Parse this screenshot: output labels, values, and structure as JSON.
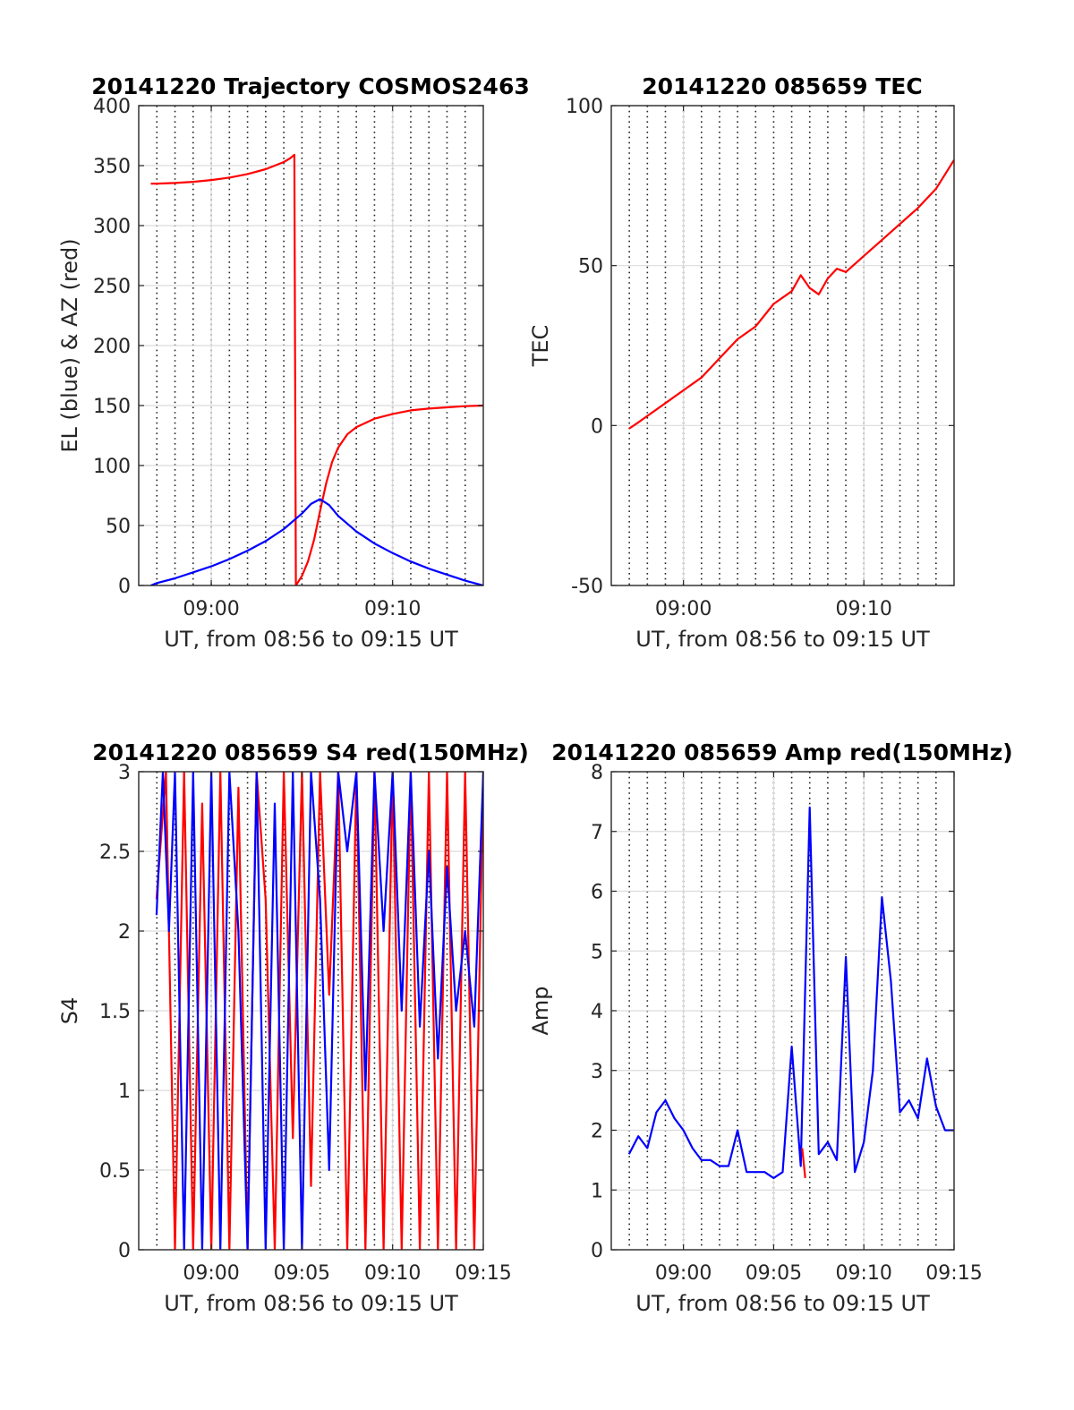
{
  "chart_data": [
    {
      "id": "trajectory",
      "type": "line",
      "title": "20141220 Trajectory COSMOS2463",
      "xlabel": "UT, from 08:56 to 09:15 UT",
      "ylabel": "EL (blue) & AZ (red)",
      "xlim": [
        "08:56",
        "09:15"
      ],
      "ylim": [
        0,
        400
      ],
      "yticks": [
        0,
        50,
        100,
        150,
        200,
        250,
        300,
        350,
        400
      ],
      "xticks": [
        "09:00",
        "09:10"
      ],
      "xtick_minutes": [
        4,
        14
      ],
      "grid": true,
      "minor_grid": true,
      "series": [
        {
          "color": "#ff0000",
          "x": [
            "08:56:40",
            "08:57:00",
            "08:58:00",
            "08:59:00",
            "09:00:00",
            "09:01:00",
            "09:02:00",
            "09:03:00",
            "09:03:30",
            "09:04:00",
            "09:04:20",
            "09:04:30",
            "09:04:35",
            "09:04:40",
            "09:05:00",
            "09:05:20",
            "09:05:40",
            "09:06:00",
            "09:06:20",
            "09:06:40",
            "09:07:00",
            "09:07:30",
            "09:08:00",
            "09:09:00",
            "09:10:00",
            "09:11:00",
            "09:12:00",
            "09:13:00",
            "09:14:00",
            "09:15:00"
          ],
          "values": [
            335,
            335,
            335.5,
            336.5,
            338,
            340,
            343,
            347,
            350,
            353,
            356,
            358,
            359,
            0,
            8,
            20,
            38,
            62,
            85,
            103,
            115,
            126,
            132,
            139,
            143,
            146,
            147.5,
            148.5,
            149.5,
            150
          ]
        },
        {
          "color": "#0000ff",
          "x": [
            "08:56:40",
            "08:57:00",
            "08:58:00",
            "08:59:00",
            "09:00:00",
            "09:01:00",
            "09:02:00",
            "09:03:00",
            "09:04:00",
            "09:05:00",
            "09:05:30",
            "09:06:00",
            "09:06:30",
            "09:07:00",
            "09:08:00",
            "09:09:00",
            "09:10:00",
            "09:11:00",
            "09:12:00",
            "09:13:00",
            "09:14:00",
            "09:15:00"
          ],
          "values": [
            0,
            2,
            6,
            11,
            16,
            22,
            29,
            37,
            47,
            60,
            68,
            72,
            67,
            58,
            45,
            35,
            27,
            20,
            14,
            9,
            4,
            0
          ]
        }
      ]
    },
    {
      "id": "tec",
      "type": "line",
      "title": "20141220 085659 TEC",
      "xlabel": "UT, from 08:56 to 09:15 UT",
      "ylabel": "TEC",
      "xlim": [
        "08:56",
        "09:15"
      ],
      "ylim": [
        -50,
        100
      ],
      "yticks": [
        -50,
        0,
        50,
        100
      ],
      "xticks": [
        "09:00",
        "09:10"
      ],
      "xtick_minutes": [
        4,
        14
      ],
      "grid": true,
      "minor_grid": true,
      "series": [
        {
          "color": "#ff0000",
          "x": [
            "08:56:59",
            "08:57:30",
            "08:58:00",
            "08:59:00",
            "09:00:00",
            "09:01:00",
            "09:02:00",
            "09:03:00",
            "09:04:00",
            "09:05:00",
            "09:06:00",
            "09:06:30",
            "09:07:00",
            "09:07:30",
            "09:08:00",
            "09:08:30",
            "09:09:00",
            "09:10:00",
            "09:11:00",
            "09:12:00",
            "09:13:00",
            "09:14:00",
            "09:15:00"
          ],
          "values": [
            -1,
            1,
            3,
            7,
            11,
            15,
            21,
            27,
            31,
            38,
            42,
            47,
            43,
            41,
            46,
            49,
            48,
            53,
            58,
            63,
            68,
            74,
            83
          ]
        }
      ]
    },
    {
      "id": "s4",
      "type": "line",
      "title": "20141220 085659 S4 red(150MHz)",
      "xlabel": "UT, from 08:56 to 09:15 UT",
      "ylabel": "S4",
      "xlim": [
        "08:56",
        "09:15"
      ],
      "ylim": [
        0,
        3
      ],
      "yticks": [
        0,
        0.5,
        1,
        1.5,
        2,
        2.5,
        3
      ],
      "xticks": [
        "09:00",
        "09:05",
        "09:10",
        "09:15"
      ],
      "xtick_minutes": [
        4,
        9,
        14,
        19
      ],
      "grid": true,
      "minor_grid": true,
      "series": [
        {
          "color": "#ff0000",
          "x": [
            "08:56:59",
            "08:57:30",
            "08:58:00",
            "08:58:30",
            "08:59:00",
            "08:59:30",
            "09:00:00",
            "09:00:30",
            "09:01:00",
            "09:01:30",
            "09:02:00",
            "09:02:30",
            "09:03:00",
            "09:03:30",
            "09:04:00",
            "09:04:30",
            "09:05:00",
            "09:05:30",
            "09:06:00",
            "09:06:30",
            "09:07:00",
            "09:07:30",
            "09:08:00",
            "09:08:30",
            "09:09:00",
            "09:09:30",
            "09:10:00",
            "09:10:30",
            "09:11:00",
            "09:11:30",
            "09:12:00",
            "09:12:30",
            "09:13:00",
            "09:13:30",
            "09:14:00",
            "09:14:30",
            "09:15:00"
          ],
          "values": [
            2.2,
            3,
            0,
            3,
            0,
            2.8,
            0,
            3,
            0,
            2.9,
            0,
            3,
            2.2,
            0,
            3,
            0.7,
            3,
            0.4,
            3,
            1.6,
            3,
            0,
            3,
            0,
            3,
            0,
            3,
            0,
            3,
            0,
            3,
            0,
            3,
            0,
            3,
            0,
            3
          ]
        },
        {
          "color": "#0000ff",
          "x": [
            "08:56:59",
            "08:57:20",
            "08:57:40",
            "08:58:00",
            "08:58:30",
            "08:59:00",
            "08:59:30",
            "09:00:00",
            "09:00:30",
            "09:01:00",
            "09:01:30",
            "09:02:00",
            "09:02:30",
            "09:03:00",
            "09:03:30",
            "09:04:00",
            "09:04:30",
            "09:05:00",
            "09:05:30",
            "09:06:00",
            "09:06:30",
            "09:07:00",
            "09:07:30",
            "09:08:00",
            "09:08:30",
            "09:09:00",
            "09:09:30",
            "09:10:00",
            "09:10:30",
            "09:11:00",
            "09:11:30",
            "09:12:00",
            "09:12:30",
            "09:13:00",
            "09:13:30",
            "09:14:00",
            "09:14:30",
            "09:15:00"
          ],
          "values": [
            2.1,
            3,
            2.0,
            3,
            0,
            3,
            0,
            3,
            0,
            3,
            2.0,
            0,
            3,
            0,
            2.8,
            0,
            3,
            0,
            3,
            2.2,
            0.5,
            3,
            2.5,
            3,
            1.0,
            3,
            2.0,
            3,
            1.5,
            3,
            1.4,
            2.5,
            1.2,
            2.4,
            1.5,
            2.0,
            1.4,
            3
          ]
        }
      ]
    },
    {
      "id": "amp",
      "type": "line",
      "title": "20141220 085659 Amp red(150MHz)",
      "xlabel": "UT, from 08:56 to 09:15 UT",
      "ylabel": "Amp",
      "xlim": [
        "08:56",
        "09:15"
      ],
      "ylim": [
        0,
        8
      ],
      "yticks": [
        0,
        1,
        2,
        3,
        4,
        5,
        6,
        7,
        8
      ],
      "xticks": [
        "09:00",
        "09:05",
        "09:10",
        "09:15"
      ],
      "xtick_minutes": [
        4,
        9,
        14,
        19
      ],
      "grid": true,
      "minor_grid": true,
      "series": [
        {
          "color": "#0000ff",
          "x": [
            "08:56:59",
            "08:57:30",
            "08:58:00",
            "08:58:30",
            "08:59:00",
            "08:59:30",
            "09:00:00",
            "09:00:30",
            "09:01:00",
            "09:01:30",
            "09:02:00",
            "09:02:30",
            "09:03:00",
            "09:03:30",
            "09:04:00",
            "09:04:30",
            "09:05:00",
            "09:05:30",
            "09:06:00",
            "09:06:30",
            "09:07:00",
            "09:07:30",
            "09:08:00",
            "09:08:30",
            "09:09:00",
            "09:09:30",
            "09:10:00",
            "09:10:30",
            "09:11:00",
            "09:11:30",
            "09:12:00",
            "09:12:30",
            "09:13:00",
            "09:13:30",
            "09:14:00",
            "09:14:30",
            "09:15:00"
          ],
          "values": [
            1.6,
            1.9,
            1.7,
            2.3,
            2.5,
            2.2,
            2.0,
            1.7,
            1.5,
            1.5,
            1.4,
            1.4,
            2.0,
            1.3,
            1.3,
            1.3,
            1.2,
            1.3,
            3.4,
            1.4,
            7.4,
            1.6,
            1.8,
            1.5,
            4.9,
            1.3,
            1.8,
            3.0,
            5.9,
            4.5,
            2.3,
            2.5,
            2.2,
            3.2,
            2.4,
            2.0,
            2.0
          ]
        },
        {
          "color": "#ff0000",
          "x": [
            "09:06:35",
            "09:06:45"
          ],
          "values": [
            1.7,
            1.2
          ]
        }
      ]
    }
  ]
}
